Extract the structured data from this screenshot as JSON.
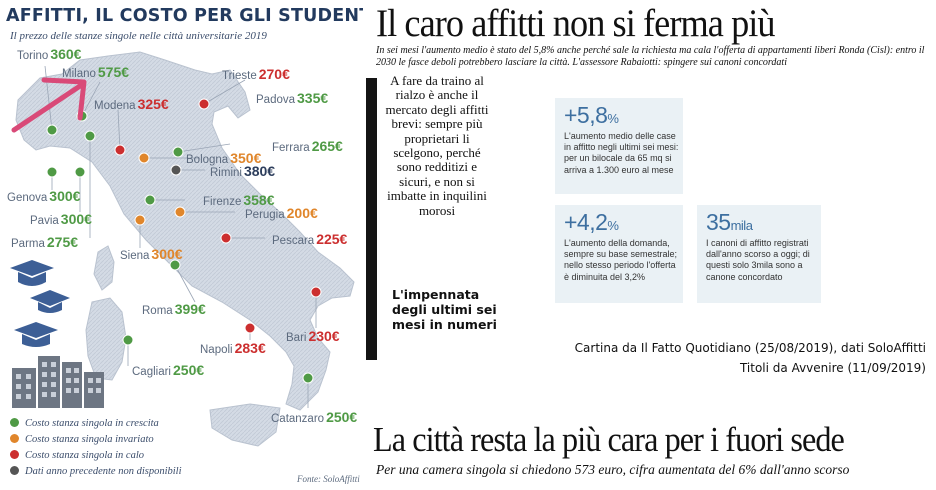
{
  "map": {
    "title": "AFFITTI, IL COSTO PER GLI STUDENTI",
    "subtitle": "Il prezzo delle stanze singole nelle città universitarie 2019",
    "cities": [
      {
        "name": "Torino",
        "price": "360€",
        "status": "green"
      },
      {
        "name": "Milano",
        "price": "575€",
        "status": "green"
      },
      {
        "name": "Modena",
        "price": "325€",
        "status": "red"
      },
      {
        "name": "Trieste",
        "price": "270€",
        "status": "red"
      },
      {
        "name": "Padova",
        "price": "335€",
        "status": "green"
      },
      {
        "name": "Ferrara",
        "price": "265€",
        "status": "green"
      },
      {
        "name": "Bologna",
        "price": "350€",
        "status": "orange"
      },
      {
        "name": "Rimini",
        "price": "380€",
        "status": "gray"
      },
      {
        "name": "Genova",
        "price": "300€",
        "status": "green"
      },
      {
        "name": "Pavia",
        "price": "300€",
        "status": "green"
      },
      {
        "name": "Parma",
        "price": "275€",
        "status": "green"
      },
      {
        "name": "Firenze",
        "price": "358€",
        "status": "green"
      },
      {
        "name": "Perugia",
        "price": "200€",
        "status": "orange"
      },
      {
        "name": "Siena",
        "price": "300€",
        "status": "orange"
      },
      {
        "name": "Pescara",
        "price": "225€",
        "status": "red"
      },
      {
        "name": "Roma",
        "price": "399€",
        "status": "green"
      },
      {
        "name": "Bari",
        "price": "230€",
        "status": "red"
      },
      {
        "name": "Napoli",
        "price": "283€",
        "status": "red"
      },
      {
        "name": "Cagliari",
        "price": "250€",
        "status": "green"
      },
      {
        "name": "Catanzaro",
        "price": "250€",
        "status": "green"
      }
    ],
    "legend": [
      {
        "label": "Costo stanza singola in crescita",
        "color": "#4f9a45"
      },
      {
        "label": "Costo stanza singola invariato",
        "color": "#e0862b"
      },
      {
        "label": "Costo stanza singola in calo",
        "color": "#cc2f2f"
      },
      {
        "label": "Dati anno precedente non disponibili",
        "color": "#555555"
      }
    ],
    "source": "Fonte: SoloAffitti"
  },
  "article1": {
    "headline": "Il caro affitti non si ferma più",
    "subhead": "In sei mesi l'aumento medio è stato del 5,8% anche perché sale la richiesta ma cala l'offerta di appartamenti liberi Ronda (Cisl): entro il 2030 le fasce deboli potrebbero lasciare la città. L'assessore Rabaiotti: spingere sui canoni concordati",
    "body": "A fare da traino al rialzo è anche il mercato degli affitti brevi: sempre più proprietari li scelgono, perché sono redditizi e sicuri, e non si imbatte in inquilini morosi",
    "boxout_title": "L'impennata degli ultimi sei mesi in numeri",
    "stats": [
      {
        "value": "+5,8",
        "unit": "%",
        "text": "L'aumento medio delle case in affitto negli ultimi sei mesi: per un bilocale da 65 mq si arriva a 1.300 euro al mese"
      },
      {
        "value": "+4,2",
        "unit": "%",
        "text": "L'aumento della domanda, sempre su base semestrale; nello stesso periodo l'offerta è diminuita del 3,2%"
      },
      {
        "value": "35",
        "unit": "mila",
        "text": "I canoni di affitto registrati dall'anno scorso a oggi; di questi solo 3mila sono a canone concordato"
      }
    ]
  },
  "credits": {
    "line1": "Cartina da Il Fatto Quotidiano (25/08/2019), dati SoloAffitti",
    "line2": "Titoli da Avvenire (11/09/2019)"
  },
  "article2": {
    "headline": "La città resta la più cara per i fuori sede",
    "subhead": "Per una camera singola si chiedono 573 euro, cifra aumentata del 6% dall'anno scorso"
  },
  "colors": {
    "green": "#4f9a45",
    "orange": "#e0862b",
    "red": "#cc2f2f",
    "gray": "#555555",
    "navy": "#223a5e",
    "arrow": "#d94a78"
  }
}
